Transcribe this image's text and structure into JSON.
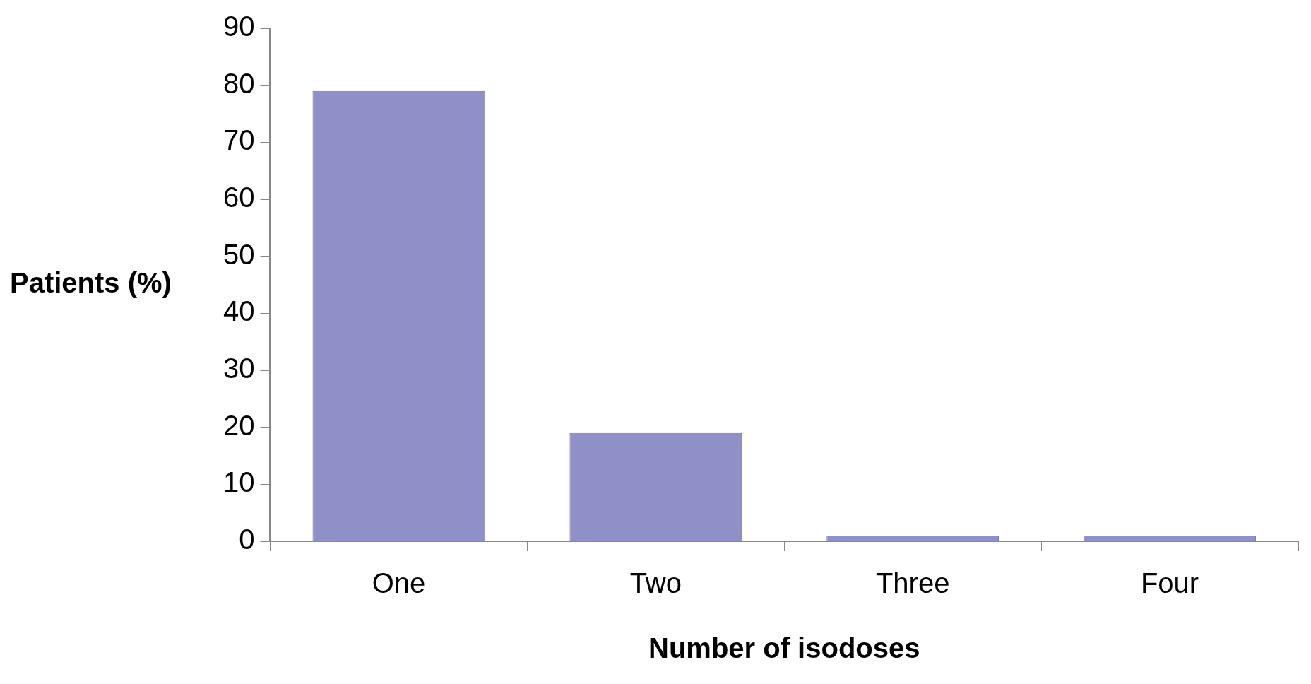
{
  "chart_data": {
    "type": "bar",
    "xlabel": "Number of isodoses",
    "ylabel": "Patients (%)",
    "categories": [
      "One",
      "Two",
      "Three",
      "Four"
    ],
    "values": [
      79,
      19,
      1,
      1
    ],
    "color": "#9090c8",
    "ylim": [
      0,
      90
    ],
    "yticks": [
      0,
      10,
      20,
      30,
      40,
      50,
      60,
      70,
      80,
      90
    ],
    "grid": false,
    "legend": false
  }
}
